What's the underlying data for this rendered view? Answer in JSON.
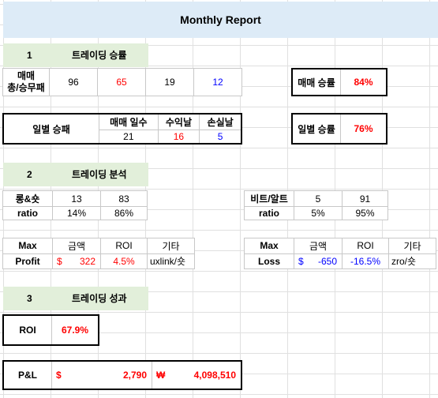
{
  "title": "Monthly Report",
  "sections": [
    {
      "num": "1",
      "label": "트레이딩 승률"
    },
    {
      "num": "2",
      "label": "트레이딩 분석"
    },
    {
      "num": "3",
      "label": "트레이딩 성과"
    }
  ],
  "trade_counts": {
    "label": "매매\n총/승무패",
    "total": "96",
    "win": "65",
    "draw": "19",
    "loss": "12"
  },
  "trade_winrate": {
    "label": "매매 승률",
    "value": "84%"
  },
  "daily": {
    "label": "일별 승패",
    "headers": [
      "매매 일수",
      "수익날",
      "손실날"
    ],
    "values": [
      "21",
      "16",
      "5"
    ]
  },
  "daily_winrate": {
    "label": "일별 승률",
    "value": "76%"
  },
  "long_short": {
    "label": "롱&숏",
    "ratio_label": "ratio",
    "long": "13",
    "short": "83",
    "long_ratio": "14%",
    "short_ratio": "86%"
  },
  "btc_alt": {
    "label": "비트/알트",
    "ratio_label": "ratio",
    "btc": "5",
    "alt": "91",
    "btc_ratio": "5%",
    "alt_ratio": "95%"
  },
  "max_profit": {
    "label_top": "Max",
    "label_bottom": "Profit",
    "headers": [
      "금액",
      "ROI",
      "기타"
    ],
    "currency": "$",
    "amount": "322",
    "roi": "4.5%",
    "note": "uxlink/숏"
  },
  "max_loss": {
    "label_top": "Max",
    "label_bottom": "Loss",
    "headers": [
      "금액",
      "ROI",
      "기타"
    ],
    "currency": "$",
    "amount": "-650",
    "roi": "-16.5%",
    "note": "zro/숏"
  },
  "roi": {
    "label": "ROI",
    "value": "67.9%"
  },
  "pnl": {
    "label": "P&L",
    "usd_symbol": "$",
    "usd": "2,790",
    "krw_symbol": "₩",
    "krw": "4,098,510"
  },
  "colors": {
    "title_band": "#ddebf7",
    "section_band": "#e2efda",
    "positive": "#ff0000",
    "negative": "#0000ff"
  }
}
